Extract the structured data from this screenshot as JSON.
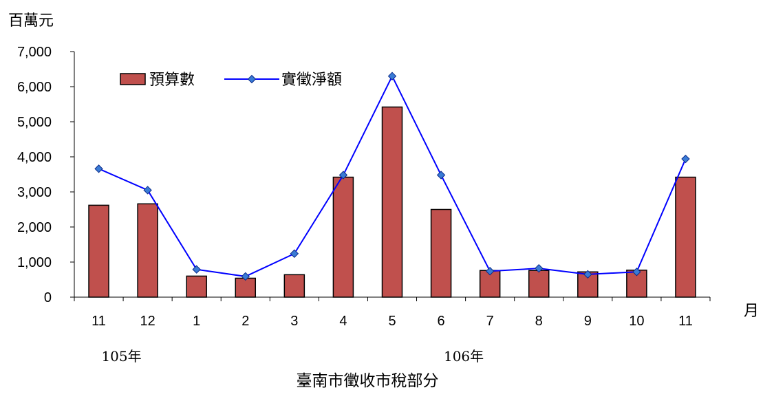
{
  "chart_data": {
    "type": "bar",
    "title": "臺南市徵收市稅部分",
    "ylabel": "百萬元",
    "xlabel": "月",
    "categories": [
      "11",
      "12",
      "1",
      "2",
      "3",
      "4",
      "5",
      "6",
      "7",
      "8",
      "9",
      "10",
      "11"
    ],
    "year_labels": [
      {
        "text": "105年",
        "category_index": 0
      },
      {
        "text": "106年",
        "category_index": 7
      }
    ],
    "ylim": [
      0,
      7000
    ],
    "yticks": [
      0,
      1000,
      2000,
      3000,
      4000,
      5000,
      6000,
      7000
    ],
    "ytick_labels": [
      "0",
      "1,000",
      "2,000",
      "3,000",
      "4,000",
      "5,000",
      "6,000",
      "7,000"
    ],
    "legend_placement": "top-left",
    "grid": false,
    "series": [
      {
        "name": "預算數",
        "kind": "bar",
        "color": "#c0504d",
        "values": [
          2620,
          2660,
          600,
          540,
          640,
          3420,
          5420,
          2500,
          760,
          760,
          720,
          770,
          3420
        ]
      },
      {
        "name": "實徵淨額",
        "kind": "line",
        "color": "#0000ff",
        "marker_color": "#3a7bd5",
        "values": [
          3660,
          3050,
          790,
          590,
          1240,
          3480,
          6300,
          3480,
          740,
          820,
          650,
          720,
          3940
        ]
      }
    ]
  }
}
